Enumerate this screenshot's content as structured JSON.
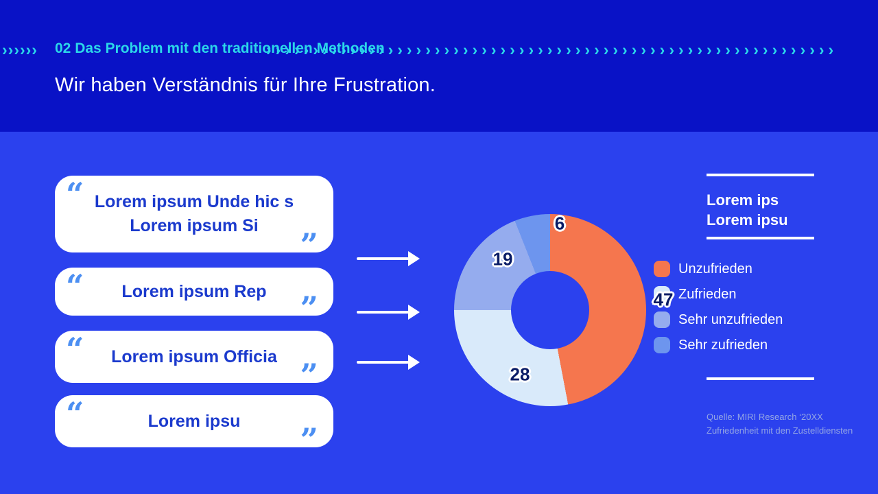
{
  "slide": {
    "section_label": "02 Das Problem mit den traditionellen Methoden",
    "headline": "Wir haben Verständnis für Ihre Frustration.",
    "decor": {
      "chevron_color": "#2BD7E9",
      "left_chevrons": "››››››",
      "right_chevrons": "›››››››››››››››››››››››››››››››››››››››››››››››››››››››››››››"
    }
  },
  "quotes": [
    {
      "text": "Lorem ipsum Unde hic s\nLorem ipsum Si"
    },
    {
      "text": "Lorem ipsum Rep"
    },
    {
      "text": "Lorem ipsum Officia"
    },
    {
      "text": "Lorem ipsu"
    }
  ],
  "quote_mark": {
    "open": "“",
    "close": "”"
  },
  "chart_data": {
    "type": "pie",
    "variant": "donut",
    "start_angle_deg": 0,
    "direction": "clockwise",
    "total": 100,
    "slices": [
      {
        "label": "Unzufrieden",
        "value": 47,
        "color": "#F5764E"
      },
      {
        "label": "Zufrieden",
        "value": 28,
        "color": "#D9EAFA"
      },
      {
        "label": "Sehr unzufrieden",
        "value": 19,
        "color": "#95ACEE"
      },
      {
        "label": "Sehr zufrieden",
        "value": 6,
        "color": "#6D95EE"
      }
    ],
    "legend_position": "right",
    "value_labels_shown": [
      6,
      19,
      47,
      28
    ]
  },
  "aside": {
    "title": "Lorem ips\nLorem ipsu",
    "source_line1": "Quelle: MIRI Research ‘20XX",
    "source_line2": "Zufriedenheit mit den Zustelldiensten"
  },
  "colors": {
    "header_bg": "#0912C6",
    "main_bg": "#2B41EE",
    "accent_cyan": "#2BD7E9",
    "card_text": "#1B3ACD",
    "quote_mark": "#4C8FF2",
    "label_navy": "#0A1C66",
    "source_text": "#93A5E4"
  }
}
